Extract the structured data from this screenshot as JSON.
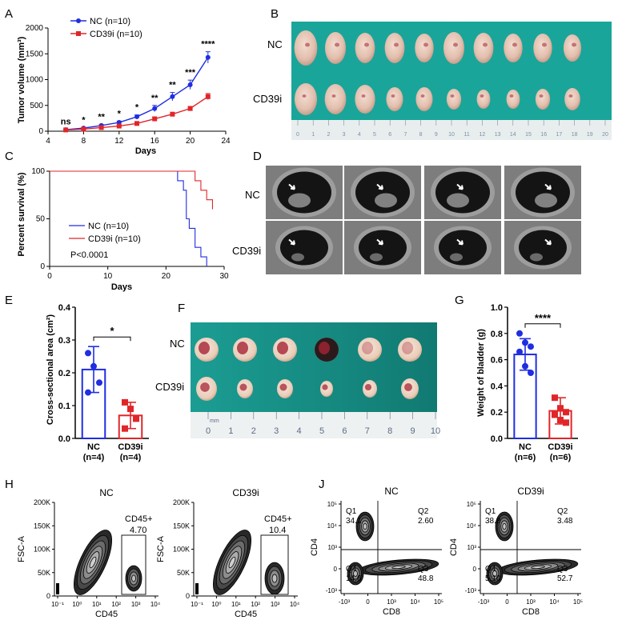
{
  "panels": {
    "A": {
      "letter": "A"
    },
    "B": {
      "letter": "B"
    },
    "C": {
      "letter": "C"
    },
    "D": {
      "letter": "D"
    },
    "E": {
      "letter": "E"
    },
    "F": {
      "letter": "F"
    },
    "G": {
      "letter": "G"
    },
    "H": {
      "letter": "H"
    },
    "J": {
      "letter": "J"
    }
  },
  "colors": {
    "nc": "#1f2ee0",
    "cd39i": "#e0262a",
    "tissue": "#1aa59a"
  },
  "photoB": {
    "row1": "NC",
    "row2": "CD39i",
    "ruler": [
      "0",
      "1",
      "2",
      "3",
      "4",
      "5",
      "6",
      "7",
      "8",
      "9",
      "10",
      "11",
      "12",
      "13",
      "14",
      "15",
      "16",
      "17",
      "18",
      "19",
      "20"
    ]
  },
  "photoD": {
    "row1": "NC",
    "row2": "CD39i"
  },
  "photoF": {
    "row1": "NC",
    "row2": "CD39i",
    "ruler_unit": "mm",
    "ruler": [
      "0",
      "1",
      "2",
      "3",
      "4",
      "5",
      "6",
      "7",
      "8",
      "9",
      "10"
    ]
  },
  "chart_data": [
    {
      "id": "A",
      "type": "line",
      "xlabel": "Days",
      "ylabel": "Tumor volume (mm³)",
      "xlim": [
        4,
        24
      ],
      "ylim": [
        0,
        2000
      ],
      "xticks": [
        "4",
        "8",
        "12",
        "16",
        "20",
        "24"
      ],
      "yticks": [
        "0",
        "500",
        "1000",
        "1500",
        "2000"
      ],
      "x": [
        6,
        8,
        10,
        12,
        14,
        16,
        18,
        20,
        22
      ],
      "series": [
        {
          "name": "NC (n=10)",
          "values": [
            30,
            60,
            110,
            170,
            280,
            440,
            670,
            900,
            1430
          ],
          "errors": [
            5,
            10,
            20,
            25,
            35,
            60,
            80,
            90,
            110
          ]
        },
        {
          "name": "CD39i (n=10)",
          "values": [
            25,
            40,
            70,
            100,
            150,
            240,
            330,
            440,
            670
          ],
          "errors": [
            5,
            8,
            10,
            15,
            20,
            25,
            30,
            40,
            60
          ]
        }
      ],
      "significance": [
        "ns",
        "*",
        "**",
        "*",
        "*",
        "**",
        "**",
        "***",
        "****"
      ]
    },
    {
      "id": "C",
      "type": "line",
      "xlabel": "Days",
      "ylabel": "Percent survival (%)",
      "xlim": [
        0,
        30
      ],
      "ylim": [
        0,
        100
      ],
      "xticks": [
        "0",
        "10",
        "20",
        "30"
      ],
      "yticks": [
        "0",
        "50",
        "100"
      ],
      "series": [
        {
          "name": "NC (n=10)",
          "steps": [
            [
              0,
              100
            ],
            [
              22,
              100
            ],
            [
              22,
              90
            ],
            [
              23,
              90
            ],
            [
              23,
              80
            ],
            [
              23.5,
              80
            ],
            [
              23.5,
              50
            ],
            [
              24,
              50
            ],
            [
              24,
              40
            ],
            [
              25,
              40
            ],
            [
              25,
              20
            ],
            [
              26,
              20
            ],
            [
              26,
              10
            ],
            [
              27,
              10
            ],
            [
              27,
              0
            ]
          ]
        },
        {
          "name": "CD39i (n=10)",
          "steps": [
            [
              0,
              100
            ],
            [
              25,
              100
            ],
            [
              25,
              90
            ],
            [
              26,
              90
            ],
            [
              26,
              80
            ],
            [
              27,
              80
            ],
            [
              27,
              70
            ],
            [
              28,
              70
            ],
            [
              28,
              60
            ]
          ]
        }
      ],
      "annotation": "P<0.0001"
    },
    {
      "id": "E",
      "type": "bar",
      "ylabel": "Cross-sectional area (cm²)",
      "ylim": [
        0,
        0.4
      ],
      "yticks": [
        "0.0",
        "0.1",
        "0.2",
        "0.3",
        "0.4"
      ],
      "categories": [
        "NC\n(n=4)",
        "CD39i\n(n=4)"
      ],
      "values": [
        0.21,
        0.07
      ],
      "errors": [
        0.07,
        0.04
      ],
      "points": [
        [
          0.26,
          0.22,
          0.17,
          0.14
        ],
        [
          0.11,
          0.09,
          0.06,
          0.03
        ]
      ],
      "significance": "*"
    },
    {
      "id": "G",
      "type": "bar",
      "ylabel": "Weight of bladder (g)",
      "ylim": [
        0,
        1.0
      ],
      "yticks": [
        "0.0",
        "0.2",
        "0.4",
        "0.6",
        "0.8",
        "1.0"
      ],
      "categories": [
        "NC\n(n=6)",
        "CD39i\n(n=6)"
      ],
      "values": [
        0.64,
        0.21
      ],
      "errors": [
        0.12,
        0.1
      ],
      "points": [
        [
          0.8,
          0.73,
          0.7,
          0.66,
          0.55,
          0.5
        ],
        [
          0.31,
          0.23,
          0.2,
          0.18,
          0.14,
          0.12
        ]
      ],
      "significance": "****"
    },
    {
      "id": "H",
      "type": "scatter",
      "subtype": "flow-contour",
      "panels": [
        {
          "title": "NC",
          "gate": "CD45+",
          "value": "4.70"
        },
        {
          "title": "CD39i",
          "gate": "CD45+",
          "value": "10.4"
        }
      ],
      "xlabel": "CD45",
      "ylabel": "FSC-A",
      "xticks": [
        "10⁻¹",
        "10⁰",
        "10¹",
        "10²",
        "10³",
        "10⁴"
      ],
      "yticks": [
        "0",
        "50K",
        "100K",
        "150K",
        "200K"
      ]
    },
    {
      "id": "J",
      "type": "scatter",
      "subtype": "flow-contour",
      "panels": [
        {
          "title": "NC",
          "quadrants": [
            [
              "Q1",
              "34.1"
            ],
            [
              "Q2",
              "2.60"
            ],
            [
              "Q4",
              "14.6"
            ],
            [
              "Q3",
              "48.8"
            ]
          ]
        },
        {
          "title": "CD39i",
          "quadrants": [
            [
              "Q1",
              "38.8"
            ],
            [
              "Q2",
              "3.48"
            ],
            [
              "Q4",
              "5.10"
            ],
            [
              "Q3",
              "52.7"
            ]
          ]
        }
      ],
      "xlabel": "CD8",
      "ylabel": "CD4",
      "xticks": [
        "-10³",
        "0",
        "10³",
        "10⁴",
        "10⁵"
      ],
      "yticks": [
        "-10³",
        "0",
        "10³",
        "10⁴",
        "10⁵"
      ]
    }
  ]
}
